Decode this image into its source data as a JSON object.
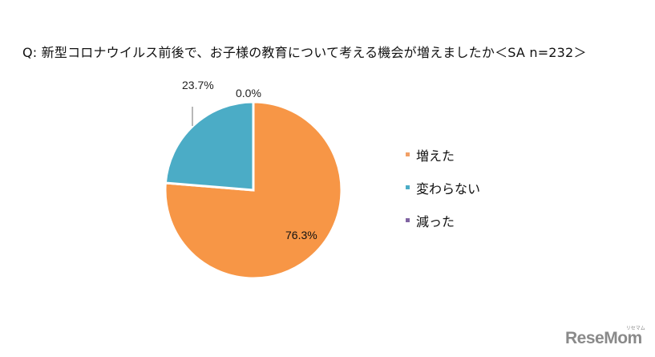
{
  "title": "Q:  新型コロナウイルス前後で、お子様の教育について考える機会が増えましたか＜SA n=232＞",
  "chart_data": {
    "type": "pie",
    "title": "Q: 新型コロナウイルス前後で、お子様の教育について考える機会が増えましたか＜SA n=232＞",
    "categories": [
      "増えた",
      "変わらない",
      "減った"
    ],
    "values": [
      76.3,
      23.7,
      0.0
    ],
    "labels": [
      "76.3%",
      "23.7%",
      "0.0%"
    ],
    "colors": [
      "#F79646",
      "#4BACC6",
      "#8064A2"
    ],
    "legend_position": "right",
    "start_angle": "12 o'clock, clockwise"
  },
  "labels": {
    "increased": "76.3%",
    "unchanged": "23.7%",
    "decreased": "0.0%"
  },
  "legend": {
    "items": [
      {
        "label": "増えた",
        "color": "#F79646"
      },
      {
        "label": "変わらない",
        "color": "#4BACC6"
      },
      {
        "label": "減った",
        "color": "#8064A2"
      }
    ]
  },
  "watermark": {
    "text": "ReseMom",
    "sub": "リセマム"
  }
}
